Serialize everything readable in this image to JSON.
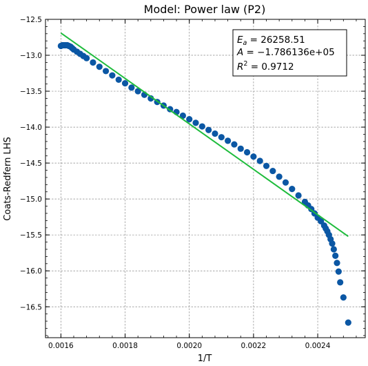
{
  "chart_data": {
    "type": "scatter",
    "title": "Model: Power law (P2)",
    "xlabel": "1/T",
    "ylabel": "Coats-Redfern LHS",
    "xlim": [
      0.001552,
      0.002548
    ],
    "ylim": [
      -16.93,
      -12.5
    ],
    "x_ticks": [
      0.0016,
      0.0018,
      0.002,
      0.0022,
      0.0024
    ],
    "x_tick_labels": [
      "0.0016",
      "0.0018",
      "0.0020",
      "0.0022",
      "0.0024"
    ],
    "y_ticks": [
      -12.5,
      -13.0,
      -13.5,
      -14.0,
      -14.5,
      -15.0,
      -15.5,
      -16.0,
      -16.5
    ],
    "y_tick_labels": [
      "−12.5",
      "−13.0",
      "−13.5",
      "−14.0",
      "−14.5",
      "−15.0",
      "−15.5",
      "−16.0",
      "−16.5"
    ],
    "grid": true,
    "annotation_position": "top-right",
    "annotation": {
      "ea_symbol": "E",
      "ea_sub": "a",
      "ea_value": " = 26258.51",
      "a_symbol": "A",
      "a_value": " = −1.786136e+05",
      "r_symbol": "R",
      "r_sup": "2",
      "r_value": " = 0.9712"
    },
    "series": [
      {
        "kind": "scatter",
        "color": "#0b57a4",
        "points": [
          [
            0.0016,
            -12.87
          ],
          [
            0.001605,
            -12.86
          ],
          [
            0.00161,
            -12.86
          ],
          [
            0.001615,
            -12.86
          ],
          [
            0.00162,
            -12.86
          ],
          [
            0.001625,
            -12.87
          ],
          [
            0.00163,
            -12.88
          ],
          [
            0.001635,
            -12.9
          ],
          [
            0.00164,
            -12.92
          ],
          [
            0.00165,
            -12.95
          ],
          [
            0.00166,
            -12.98
          ],
          [
            0.00167,
            -13.01
          ],
          [
            0.00168,
            -13.04
          ],
          [
            0.0017,
            -13.1
          ],
          [
            0.00172,
            -13.16
          ],
          [
            0.00174,
            -13.22
          ],
          [
            0.00176,
            -13.28
          ],
          [
            0.00178,
            -13.34
          ],
          [
            0.0018,
            -13.39
          ],
          [
            0.00182,
            -13.45
          ],
          [
            0.00184,
            -13.5
          ],
          [
            0.00186,
            -13.55
          ],
          [
            0.00188,
            -13.6
          ],
          [
            0.0019,
            -13.65
          ],
          [
            0.00192,
            -13.7
          ],
          [
            0.00194,
            -13.75
          ],
          [
            0.00196,
            -13.79
          ],
          [
            0.00198,
            -13.84
          ],
          [
            0.002,
            -13.89
          ],
          [
            0.00202,
            -13.94
          ],
          [
            0.00204,
            -13.99
          ],
          [
            0.00206,
            -14.04
          ],
          [
            0.00208,
            -14.09
          ],
          [
            0.0021,
            -14.14
          ],
          [
            0.00212,
            -14.19
          ],
          [
            0.00214,
            -14.24
          ],
          [
            0.00216,
            -14.3
          ],
          [
            0.00218,
            -14.35
          ],
          [
            0.0022,
            -14.41
          ],
          [
            0.00222,
            -14.47
          ],
          [
            0.00224,
            -14.54
          ],
          [
            0.00226,
            -14.61
          ],
          [
            0.00228,
            -14.69
          ],
          [
            0.0023,
            -14.77
          ],
          [
            0.00232,
            -14.86
          ],
          [
            0.00234,
            -14.95
          ],
          [
            0.00236,
            -15.04
          ],
          [
            0.00237,
            -15.09
          ],
          [
            0.00238,
            -15.14
          ],
          [
            0.00239,
            -15.2
          ],
          [
            0.0024,
            -15.26
          ],
          [
            0.00241,
            -15.31
          ],
          [
            0.00242,
            -15.37
          ],
          [
            0.002425,
            -15.41
          ],
          [
            0.00243,
            -15.45
          ],
          [
            0.002435,
            -15.5
          ],
          [
            0.00244,
            -15.56
          ],
          [
            0.002445,
            -15.62
          ],
          [
            0.00245,
            -15.7
          ],
          [
            0.002455,
            -15.79
          ],
          [
            0.00246,
            -15.89
          ],
          [
            0.002465,
            -16.01
          ],
          [
            0.00247,
            -16.16
          ],
          [
            0.00248,
            -16.37
          ],
          [
            0.002495,
            -16.72
          ]
        ]
      },
      {
        "kind": "line",
        "color": "#1ebc3c",
        "points": [
          [
            0.0016,
            -12.69
          ],
          [
            0.002495,
            -15.52
          ]
        ]
      }
    ]
  }
}
